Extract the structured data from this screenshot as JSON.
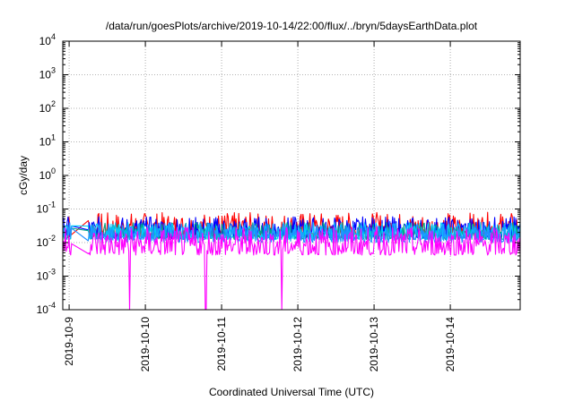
{
  "chart_data": {
    "type": "line",
    "title": "/data/run/goesPlots/archive/2019-10-14/22:00/flux/../bryn/5daysEarthData.plot",
    "xlabel": "Coordinated Universal Time (UTC)",
    "ylabel": "cGy/day",
    "yscale": "log",
    "ylim": [
      0.0001,
      10000
    ],
    "y_ticks": [
      {
        "base": "10",
        "exp": "-4",
        "value": 0.0001
      },
      {
        "base": "10",
        "exp": "-3",
        "value": 0.001
      },
      {
        "base": "10",
        "exp": "-2",
        "value": 0.01
      },
      {
        "base": "10",
        "exp": "-1",
        "value": 0.1
      },
      {
        "base": "10",
        "exp": "0",
        "value": 1
      },
      {
        "base": "10",
        "exp": "1",
        "value": 10
      },
      {
        "base": "10",
        "exp": "2",
        "value": 100
      },
      {
        "base": "10",
        "exp": "3",
        "value": 1000
      },
      {
        "base": "10",
        "exp": "4",
        "value": 10000
      }
    ],
    "xlim": [
      "2019-10-08T22:00",
      "2019-10-14T22:00"
    ],
    "x_ticks": [
      "2019-10-9",
      "2019-10-10",
      "2019-10-11",
      "2019-10-12",
      "2019-10-13",
      "2019-10-14"
    ],
    "grid": true,
    "series": [
      {
        "color": "#ff0000",
        "values_range": [
          0.01,
          0.08
        ]
      },
      {
        "color": "#0000ff",
        "values_range": [
          0.01,
          0.06
        ]
      },
      {
        "color": "#00aa88",
        "values_range": [
          0.01,
          0.04
        ]
      },
      {
        "color": "#00ccff",
        "values_range": [
          0.01,
          0.04
        ]
      },
      {
        "color": "#1e90ff",
        "values_range": [
          0.008,
          0.04
        ]
      },
      {
        "color": "#ff00ff",
        "values_range": [
          0.003,
          0.03
        ]
      }
    ],
    "dropouts": [
      {
        "series_color": "#ff00ff",
        "x": "2019-10-09T19:00",
        "value": 0.0001
      },
      {
        "series_color": "#ff00ff",
        "x": "2019-10-10T19:00",
        "value": 0.0001
      },
      {
        "series_color": "#ff00ff",
        "x": "2019-10-11T19:00",
        "value": 0.0001
      }
    ]
  }
}
